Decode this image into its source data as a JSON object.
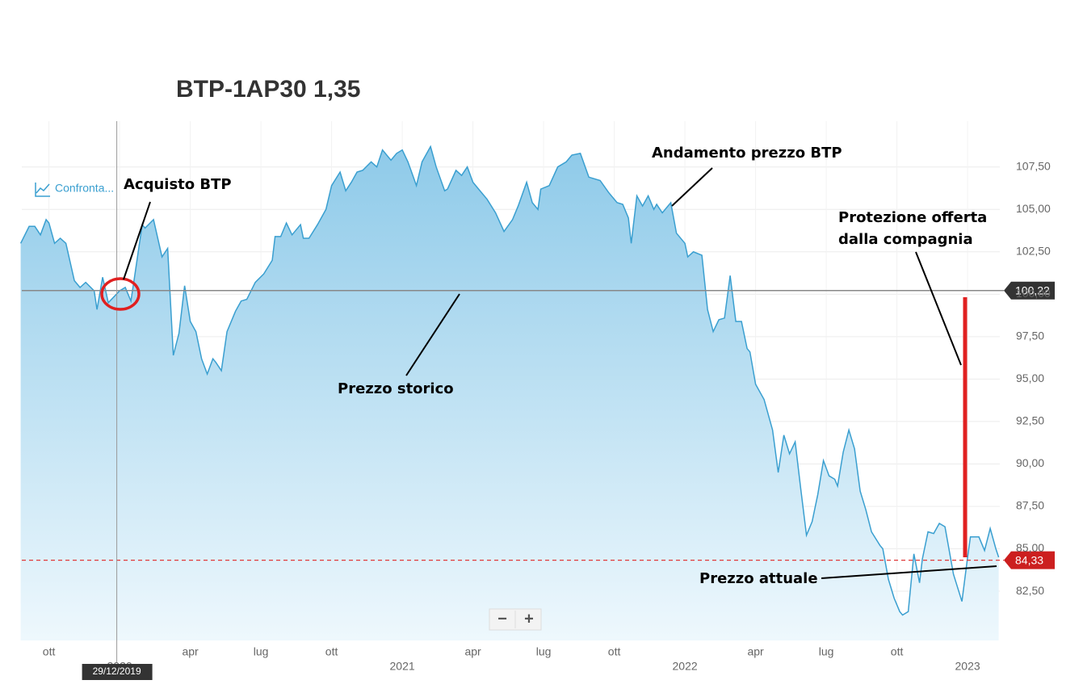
{
  "chart_data": {
    "type": "area",
    "title": "BTP-1AP30 1,35",
    "compare_button": "Confronta...",
    "zoom_out": "−",
    "zoom_in": "+",
    "line_color": "#3a9fd0",
    "fill_top": "#8ecae9",
    "fill_bottom": "#eef8fd",
    "grid": true,
    "xlim": [
      2019.654,
      2023.114
    ],
    "ylim": [
      79.6,
      110.2
    ],
    "yticks": [
      {
        "value": 82.5,
        "label": "82,50"
      },
      {
        "value": 85,
        "label": "85,00"
      },
      {
        "value": 87.5,
        "label": "87,50"
      },
      {
        "value": 90,
        "label": "90,00"
      },
      {
        "value": 92.5,
        "label": "92,50"
      },
      {
        "value": 95,
        "label": "95,00"
      },
      {
        "value": 97.5,
        "label": "97,50"
      },
      {
        "value": 100,
        "label": "100,00"
      },
      {
        "value": 102.5,
        "label": "102,50"
      },
      {
        "value": 105,
        "label": "105,00"
      },
      {
        "value": 107.5,
        "label": "107,50"
      }
    ],
    "xticks": [
      {
        "value": 2019.75,
        "label": "ott"
      },
      {
        "value": 2020,
        "label": "2020"
      },
      {
        "value": 2020.25,
        "label": "apr"
      },
      {
        "value": 2020.5,
        "label": "lug"
      },
      {
        "value": 2020.75,
        "label": "ott"
      },
      {
        "value": 2021,
        "label": "2021"
      },
      {
        "value": 2021.25,
        "label": "apr"
      },
      {
        "value": 2021.5,
        "label": "lug"
      },
      {
        "value": 2021.75,
        "label": "ott"
      },
      {
        "value": 2022,
        "label": "2022"
      },
      {
        "value": 2022.25,
        "label": "apr"
      },
      {
        "value": 2022.5,
        "label": "lug"
      },
      {
        "value": 2022.75,
        "label": "ott"
      },
      {
        "value": 2023,
        "label": "2023"
      }
    ],
    "x": [
      2019.65,
      2019.68,
      2019.7,
      2019.72,
      2019.74,
      2019.75,
      2019.77,
      2019.79,
      2019.81,
      2019.84,
      2019.86,
      2019.88,
      2019.91,
      2019.92,
      2019.94,
      2019.96,
      2020.0,
      2020.02,
      2020.04,
      2020.05,
      2020.08,
      2020.09,
      2020.12,
      2020.15,
      2020.17,
      2020.19,
      2020.21,
      2020.23,
      2020.25,
      2020.27,
      2020.29,
      2020.31,
      2020.33,
      2020.34,
      2020.36,
      2020.38,
      2020.41,
      2020.43,
      2020.45,
      2020.48,
      2020.51,
      2020.54,
      2020.55,
      2020.57,
      2020.59,
      2020.61,
      2020.64,
      2020.65,
      2020.67,
      2020.7,
      2020.73,
      2020.75,
      2020.78,
      2020.8,
      2020.82,
      2020.84,
      2020.86,
      2020.89,
      2020.91,
      2020.93,
      2020.96,
      2020.98,
      2021.0,
      2021.02,
      2021.05,
      2021.07,
      2021.1,
      2021.12,
      2021.15,
      2021.16,
      2021.19,
      2021.21,
      2021.23,
      2021.25,
      2021.27,
      2021.3,
      2021.33,
      2021.36,
      2021.39,
      2021.41,
      2021.44,
      2021.46,
      2021.48,
      2021.49,
      2021.52,
      2021.55,
      2021.58,
      2021.6,
      2021.63,
      2021.66,
      2021.7,
      2021.73,
      2021.76,
      2021.78,
      2021.8,
      2021.81,
      2021.83,
      2021.85,
      2021.87,
      2021.89,
      2021.9,
      2021.92,
      2021.95,
      2021.97,
      2022.0,
      2022.01,
      2022.03,
      2022.06,
      2022.08,
      2022.1,
      2022.12,
      2022.14,
      2022.16,
      2022.18,
      2022.2,
      2022.22,
      2022.23,
      2022.25,
      2022.28,
      2022.3,
      2022.31,
      2022.33,
      2022.35,
      2022.37,
      2022.39,
      2022.41,
      2022.43,
      2022.45,
      2022.47,
      2022.49,
      2022.51,
      2022.53,
      2022.54,
      2022.56,
      2022.58,
      2022.6,
      2022.62,
      2022.64,
      2022.66,
      2022.69,
      2022.7,
      2022.72,
      2022.74,
      2022.76,
      2022.77,
      2022.79,
      2022.81,
      2022.83,
      2022.84,
      2022.86,
      2022.88,
      2022.9,
      2022.92,
      2022.95,
      2022.98,
      2023.0,
      2023.01,
      2023.04,
      2023.06,
      2023.08,
      2023.1,
      2023.11
    ],
    "values": [
      103.0,
      104.0,
      104.0,
      103.5,
      104.4,
      104.2,
      103.0,
      103.3,
      103.0,
      100.8,
      100.4,
      100.7,
      100.2,
      99.1,
      101.0,
      99.5,
      100.2,
      100.4,
      99.6,
      100.7,
      104.1,
      103.9,
      104.4,
      102.2,
      102.7,
      96.4,
      97.7,
      100.5,
      98.4,
      97.8,
      96.2,
      95.3,
      96.2,
      96.0,
      95.5,
      97.8,
      99.0,
      99.6,
      99.7,
      100.7,
      101.2,
      102.0,
      103.4,
      103.4,
      104.2,
      103.5,
      104.1,
      103.3,
      103.3,
      104.1,
      105.0,
      106.4,
      107.2,
      106.1,
      106.6,
      107.2,
      107.3,
      107.8,
      107.5,
      108.5,
      107.9,
      108.3,
      108.5,
      107.8,
      106.4,
      107.8,
      108.7,
      107.5,
      106.1,
      106.2,
      107.3,
      107.0,
      107.5,
      106.6,
      106.2,
      105.6,
      104.8,
      103.7,
      104.4,
      105.2,
      106.6,
      105.4,
      105.0,
      106.2,
      106.4,
      107.5,
      107.8,
      108.2,
      108.3,
      106.9,
      106.7,
      106.0,
      105.4,
      105.3,
      104.5,
      103.0,
      105.8,
      105.2,
      105.8,
      105.0,
      105.3,
      104.8,
      105.4,
      103.6,
      103.0,
      102.2,
      102.5,
      102.3,
      99.1,
      97.8,
      98.5,
      98.6,
      101.1,
      98.4,
      98.4,
      96.8,
      96.6,
      94.7,
      93.8,
      92.6,
      92.0,
      89.5,
      91.7,
      90.6,
      91.3,
      88.5,
      85.8,
      86.6,
      88.2,
      90.2,
      89.3,
      89.1,
      88.7,
      90.7,
      92.0,
      90.9,
      88.4,
      87.3,
      86.0,
      85.2,
      85.0,
      83.2,
      82.1,
      81.3,
      81.1,
      81.3,
      84.7,
      83.0,
      84.4,
      86.0,
      85.9,
      86.5,
      86.3,
      83.5,
      81.9,
      84.5,
      85.7,
      85.7,
      84.9,
      86.2,
      85.0,
      84.5
    ],
    "reference_lines": [
      {
        "value": 100.22,
        "label": "100,22",
        "color": "#888888",
        "style": "solid",
        "badge": "#333333"
      },
      {
        "value": 84.33,
        "label": "84,33",
        "color": "#e03a3a",
        "style": "dashed",
        "badge": "#cc1f1f"
      }
    ],
    "crosshair": {
      "x": 2019.99,
      "label": "29/12/2019"
    },
    "annotations": {
      "purchase": "Acquisto BTP",
      "trend": "Andamento prezzo BTP",
      "protection": [
        "Protezione offerta",
        "dalla compagnia"
      ],
      "history": "Prezzo storico",
      "current": "Prezzo attuale"
    }
  }
}
